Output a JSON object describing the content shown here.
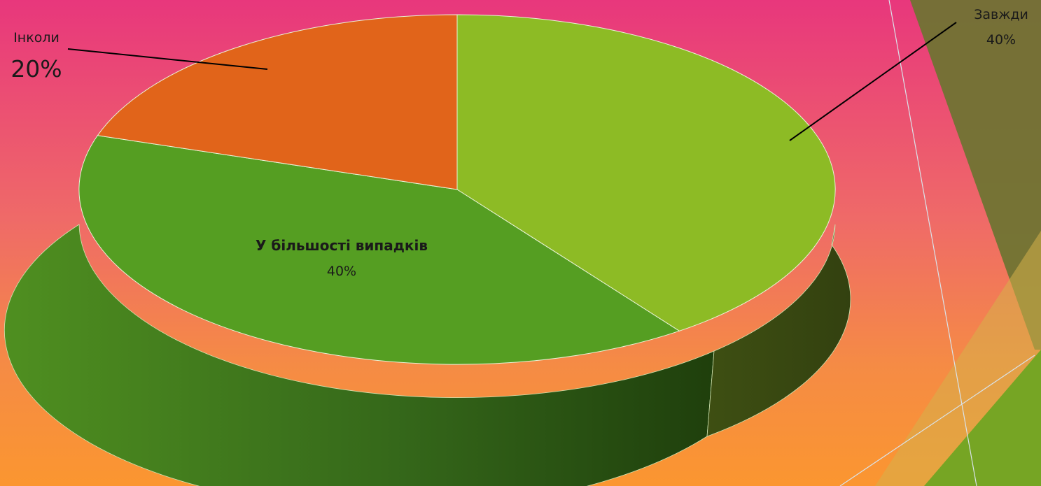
{
  "chart_data": {
    "type": "pie",
    "variant": "3d",
    "slices": [
      {
        "category": "Завжди",
        "value": 40,
        "label": "40%",
        "color": "#8dbb25"
      },
      {
        "category": "У більшості випадків",
        "value": 40,
        "label": "40%",
        "color": "#559e22"
      },
      {
        "category": "Інколи",
        "value": 20,
        "label": "20%",
        "color": "#e1641a"
      }
    ]
  },
  "theme": {
    "background_top": "#e8377c",
    "background_bottom": "#fb9630",
    "decor_olive": "#6b7431",
    "decor_green": "#76a524",
    "decor_tan": "#d5b04a"
  }
}
